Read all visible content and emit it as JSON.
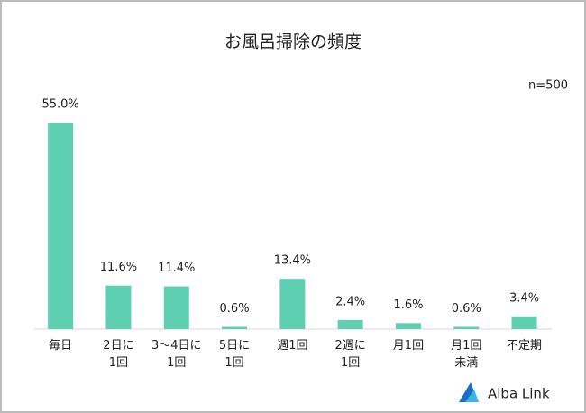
{
  "chart_data": {
    "type": "bar",
    "title": "お風呂掃除の頻度",
    "note": "n=500",
    "categories": [
      "毎日",
      "2日に\n1回",
      "3～4日に\n1回",
      "5日に\n1回",
      "週1回",
      "2週に\n1回",
      "月1回",
      "月1回\n未満",
      "不定期"
    ],
    "values": [
      55.0,
      11.6,
      11.4,
      0.6,
      13.4,
      2.4,
      1.6,
      0.6,
      3.4
    ],
    "value_labels": [
      "55.0%",
      "11.6%",
      "11.4%",
      "0.6%",
      "13.4%",
      "2.4%",
      "1.6%",
      "0.6%",
      "3.4%"
    ],
    "color": "#5ecfb1"
  },
  "logo": "Alba Link"
}
